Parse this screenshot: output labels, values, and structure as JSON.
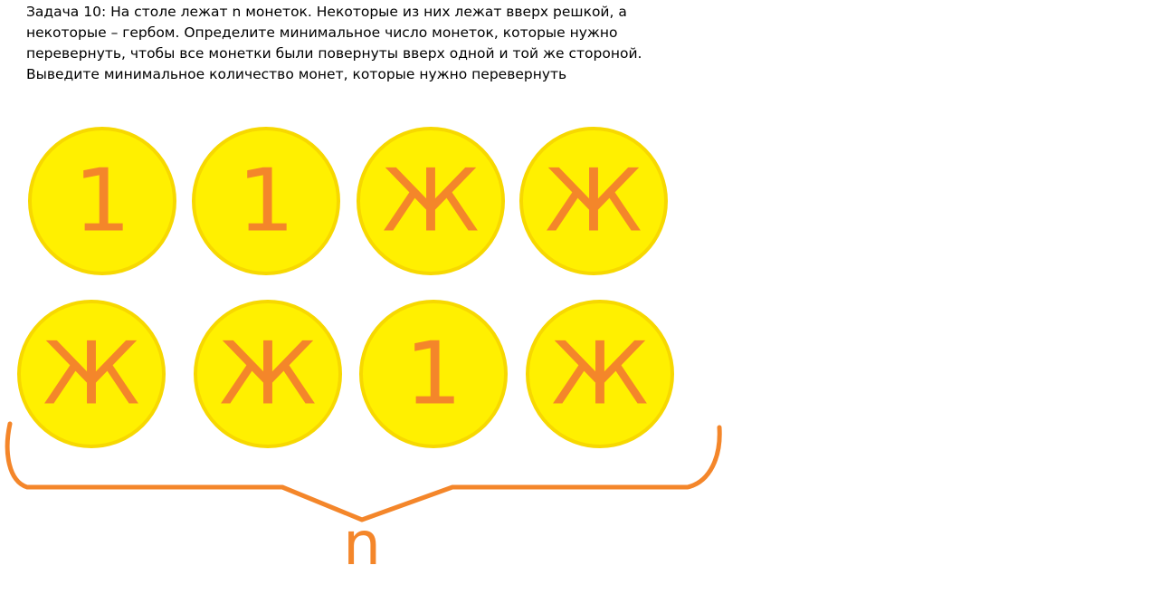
{
  "task": {
    "lines": [
      "Задача 10: На столе лежат n монеток. Некоторые из них лежат вверх решкой, а",
      "некоторые – гербом. Определите минимальное число монеток, которые нужно",
      "перевернуть, чтобы все монетки были повернуты вверх одной и той же стороной.",
      "Выведите минимальное количество монет, которые нужно перевернуть"
    ]
  },
  "coins": {
    "row1": [
      "1",
      "1",
      "Ж",
      "Ж"
    ],
    "row2": [
      "Ж",
      "Ж",
      "1",
      "Ж"
    ]
  },
  "brace": {
    "label": "n"
  },
  "colors": {
    "coin_fill": "#fff000",
    "coin_rim": "#f7d800",
    "symbol": "#f4862a",
    "brace": "#f4862a"
  }
}
